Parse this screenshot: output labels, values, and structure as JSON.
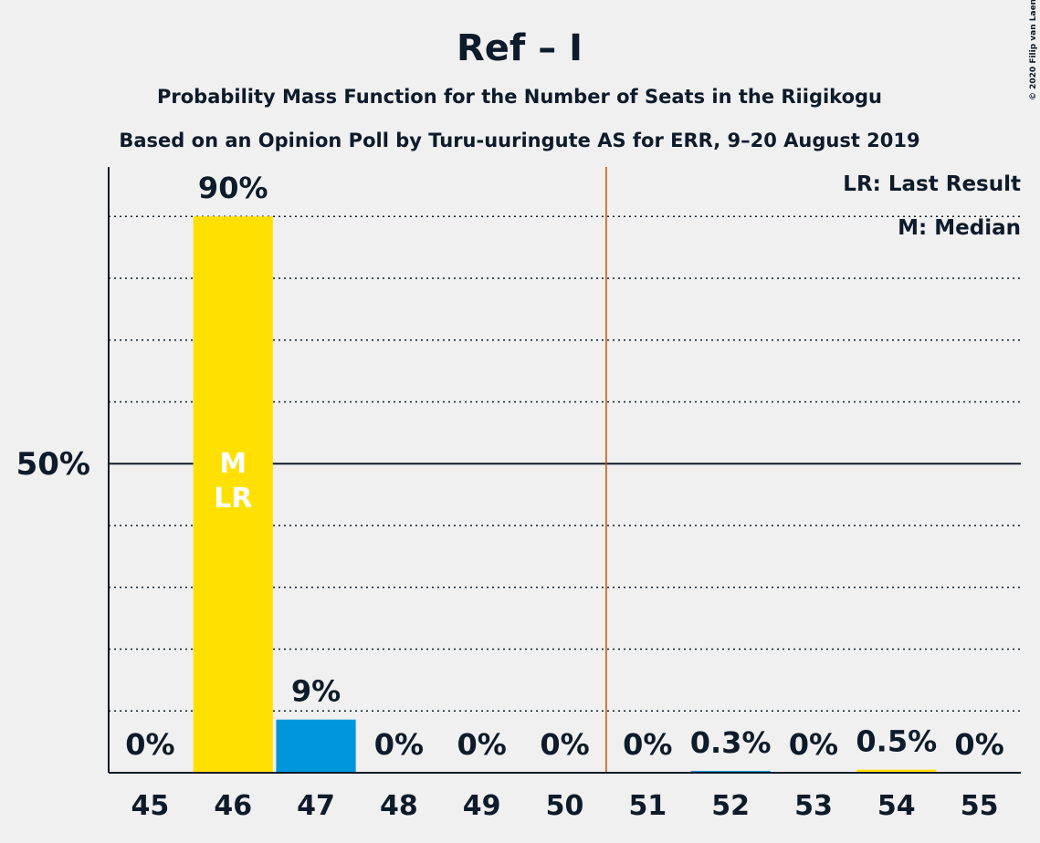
{
  "chart_data": {
    "type": "bar",
    "title": "Ref – I",
    "subtitle": "Probability Mass Function for the Number of Seats in the Riigikogu",
    "subtitle2": "Based on an Opinion Poll by Turu-uuringute AS for ERR, 9–20 August 2019",
    "copyright": "© 2020 Filip van Laenen",
    "x": [
      45,
      46,
      47,
      48,
      49,
      50,
      51,
      52,
      53,
      54,
      55
    ],
    "xlim": [
      44.5,
      55.5
    ],
    "values": [
      0,
      90,
      8.6,
      0,
      0,
      0,
      0,
      0.3,
      0,
      0.5,
      0
    ],
    "value_labels": [
      "0%",
      "90%",
      "9%",
      "0%",
      "0%",
      "0%",
      "0%",
      "0.3%",
      "0%",
      "0.5%",
      "0%"
    ],
    "colors": [
      "#0096db",
      "#ffe000",
      "#0096db",
      "#0096db",
      "#0096db",
      "#0096db",
      "#0096db",
      "#0096db",
      "#0096db",
      "#ffe000",
      "#0096db"
    ],
    "ylim": [
      0,
      98
    ],
    "yticks": [
      {
        "value": 50,
        "label": "50%"
      }
    ],
    "minor_yticks": [
      10,
      20,
      30,
      40,
      60,
      70,
      80,
      90
    ],
    "majority_line": 50.5,
    "majority_color": "#c85000",
    "median": {
      "x": 46,
      "label": "M"
    },
    "last_result": {
      "x": 46,
      "label": "LR"
    },
    "legend": [
      "LR: Last Result",
      "M: Median"
    ]
  }
}
